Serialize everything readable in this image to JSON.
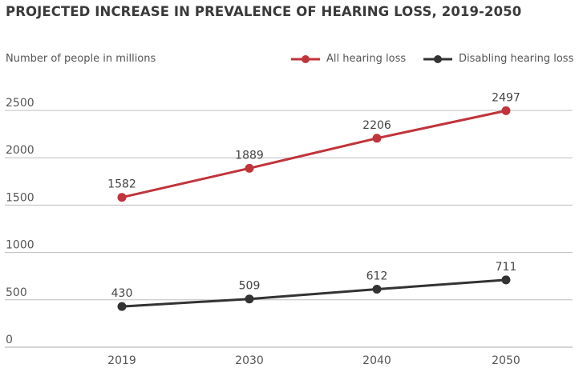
{
  "chart_data": {
    "type": "line",
    "title": "PROJECTED INCREASE IN PREVALENCE OF HEARING LOSS, 2019-2050",
    "ylabel": "Number of people in millions",
    "xlabel": "",
    "categories": [
      "2019",
      "2030",
      "2040",
      "2050"
    ],
    "ylim": [
      0,
      2500
    ],
    "yticks": [
      "0",
      "500",
      "1000",
      "1500",
      "2000",
      "2500"
    ],
    "grid": true,
    "legend_position": "top-right",
    "series": [
      {
        "name": "All hearing loss",
        "color": "#c0343b",
        "values": [
          1582,
          1889,
          2206,
          2497
        ]
      },
      {
        "name": "Disabling hearing loss",
        "color": "#333333",
        "values": [
          430,
          509,
          612,
          711
        ]
      }
    ]
  }
}
